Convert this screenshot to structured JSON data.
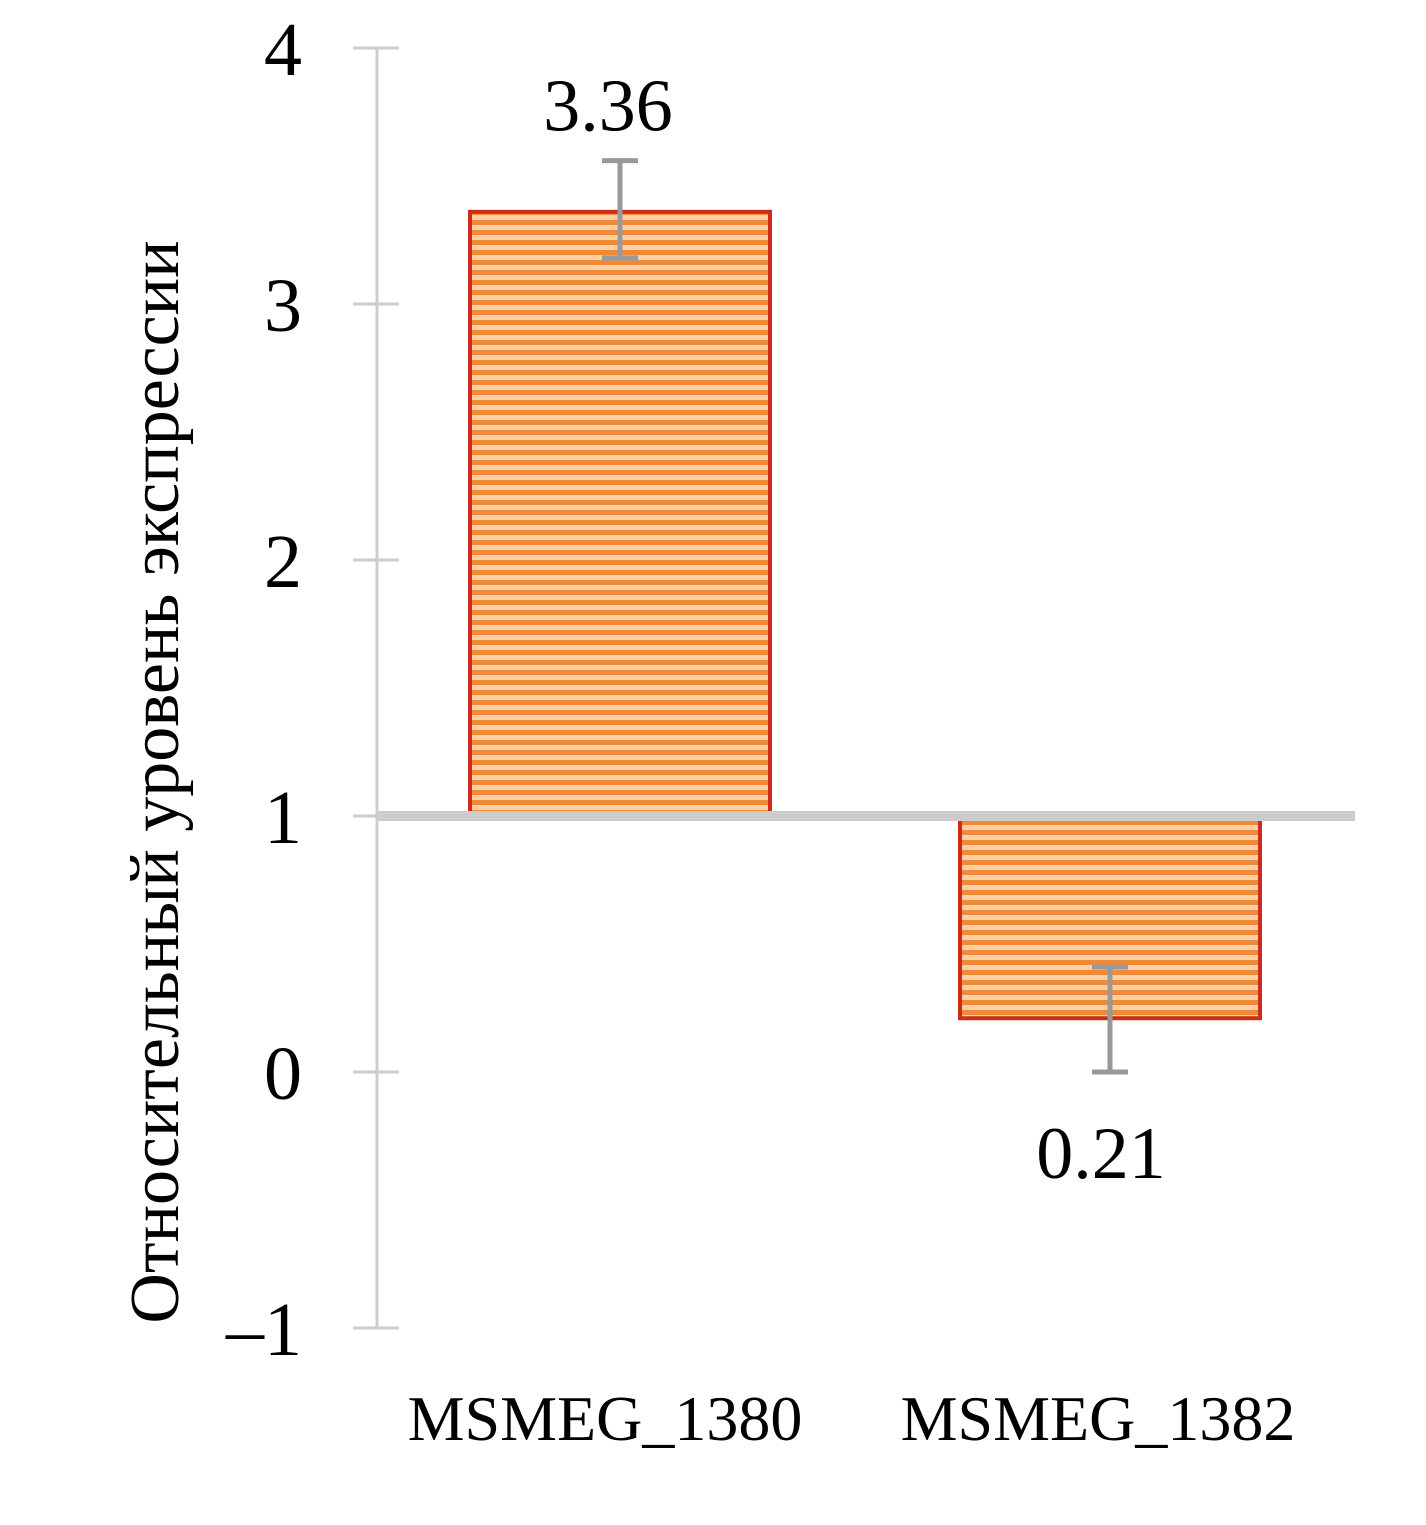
{
  "chart_data": {
    "type": "bar",
    "title": "",
    "xlabel": "",
    "ylabel": "Относительный уровень экспрессии",
    "ylim": [
      -1,
      4
    ],
    "yticks": [
      4,
      3,
      2,
      1,
      0,
      -1
    ],
    "ytick_labels": [
      "4",
      "3",
      "2",
      "1",
      "0",
      "–1"
    ],
    "baseline": 1,
    "categories": [
      "MSMEG_1380",
      "MSMEG_1382"
    ],
    "values": [
      3.36,
      0.21
    ],
    "data_labels": [
      "3.36",
      "0.21"
    ],
    "error_bars": [
      {
        "low": 3.18,
        "high": 3.56
      },
      {
        "low": 0.0,
        "high": 0.41
      }
    ],
    "grid": false,
    "legend": "none",
    "colors": {
      "bar_fill": "#ee8a3a",
      "bar_stripe": "#f9cfa6",
      "bar_border": "#d02a1a",
      "axis": "#cccccc",
      "error_bar": "#999999"
    }
  }
}
